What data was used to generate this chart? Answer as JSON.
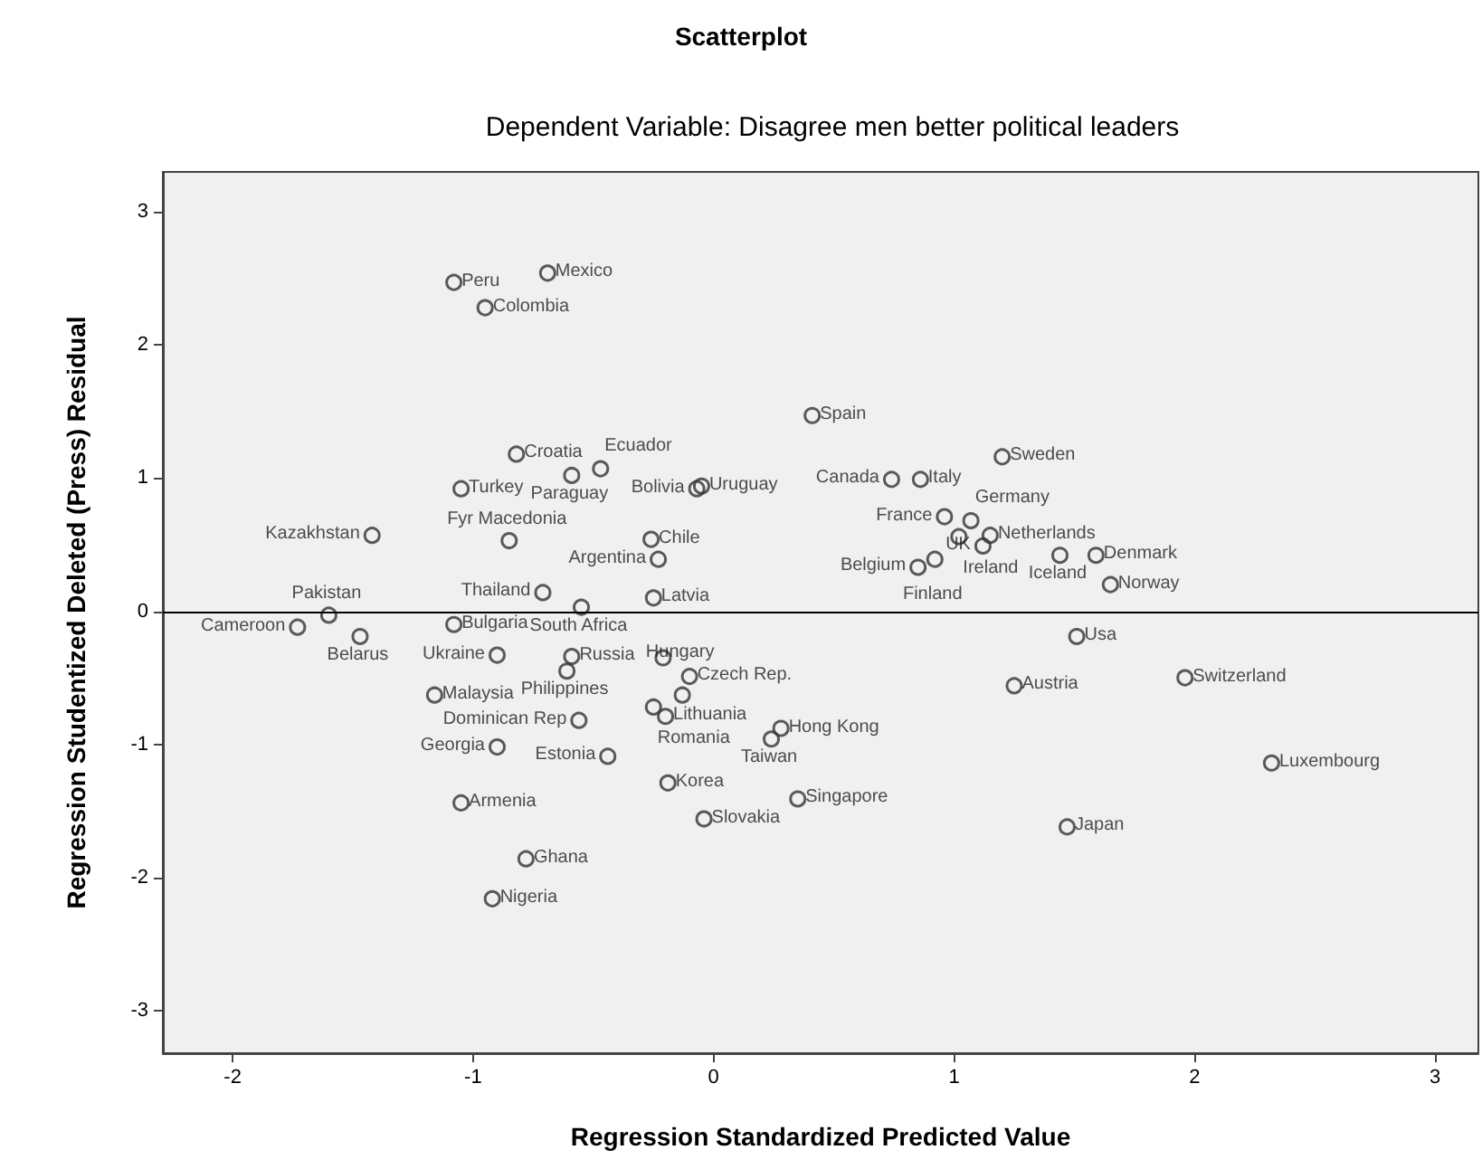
{
  "chart_data": {
    "type": "scatter",
    "title": "Scatterplot",
    "subtitle": "Dependent Variable: Disagree men better political leaders",
    "xlabel": "Regression Standardized Predicted Value",
    "ylabel": "Regression Studentized Deleted (Press) Residual",
    "x": [
      -1.08,
      -0.69,
      -0.95,
      -0.82,
      -0.47,
      -1.05,
      -0.59,
      -0.05,
      -0.07,
      -1.42,
      -0.85,
      -0.26,
      -0.23,
      -0.71,
      -0.25,
      -0.55,
      -1.6,
      -1.73,
      -1.47,
      -1.08,
      -0.9,
      -0.59,
      -0.61,
      -0.21,
      -0.1,
      -0.13,
      -1.16,
      -0.56,
      -0.25,
      -0.2,
      -0.9,
      -0.44,
      -0.19,
      0.24,
      0.28,
      -1.05,
      -0.04,
      -0.78,
      -0.92,
      0.35,
      0.41,
      0.74,
      0.86,
      1.2,
      0.96,
      1.07,
      1.15,
      1.02,
      1.12,
      1.44,
      1.59,
      1.65,
      0.85,
      0.92,
      1.51,
      1.96,
      1.25,
      2.32,
      1.47
    ],
    "series": [
      {
        "color": "#333333",
        "values": [
          2.47,
          2.54,
          2.28,
          1.18,
          1.07,
          0.92,
          1.02,
          0.94,
          0.92,
          0.57,
          0.53,
          0.54,
          0.39,
          0.14,
          0.1,
          0.03,
          -0.03,
          -0.12,
          -0.19,
          -0.1,
          -0.33,
          -0.34,
          -0.45,
          -0.35,
          -0.49,
          -0.63,
          -0.63,
          -0.82,
          -0.72,
          -0.79,
          -1.02,
          -1.09,
          -1.29,
          -0.96,
          -0.88,
          -1.44,
          -1.56,
          -1.86,
          -2.16,
          -1.41,
          1.47,
          0.99,
          0.99,
          1.16,
          0.71,
          0.68,
          0.57,
          0.56,
          0.49,
          0.42,
          0.42,
          0.2,
          0.33,
          0.39,
          -0.19,
          -0.5,
          -0.56,
          -1.14,
          -1.62
        ],
        "value_labels": [
          "Peru",
          "Mexico",
          "Colombia",
          "Croatia",
          "Ecuador",
          "Turkey",
          "Paraguay",
          "Uruguay",
          "Bolivia",
          "Kazakhstan",
          "Fyr Macedonia",
          "Chile",
          "Argentina",
          "Thailand",
          "Latvia",
          "South Africa",
          "Pakistan",
          "Cameroon",
          "Belarus",
          "Bulgaria",
          "Ukraine",
          "Russia",
          "Philippines",
          null,
          "Czech Rep.",
          "Hungary",
          "Malaysia",
          "Dominican Rep",
          "Romania",
          "Lithuania",
          "Georgia",
          "Estonia",
          "Korea",
          "Taiwan",
          "Hong Kong",
          "Armenia",
          "Slovakia",
          "Ghana",
          "Nigeria",
          "Singapore",
          "Spain",
          "Canada",
          "Italy",
          "Sweden",
          "France",
          "Germany",
          "Netherlands",
          "Ireland",
          "UK",
          "Iceland",
          "Denmark",
          "Norway",
          "Belgium",
          "Finland",
          "Usa",
          "Switzerland",
          "Austria",
          "Luxembourg",
          "Japan"
        ]
      }
    ],
    "xlim": [
      -2.29,
      3.18
    ],
    "xticks": [
      -2,
      -1,
      0,
      1,
      2,
      3
    ],
    "ylim": [
      -3.32,
      3.3
    ],
    "yticks": [
      -3,
      -2,
      -1,
      0,
      1,
      2,
      3
    ],
    "ref_lines": [
      {
        "axis": "y",
        "value": 0,
        "color": "#000000"
      }
    ],
    "grid": false,
    "marker": "circle"
  }
}
